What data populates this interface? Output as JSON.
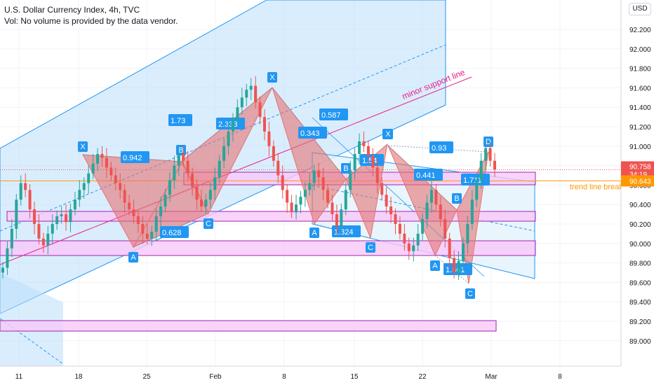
{
  "header": {
    "title": "U.S. Dollar Currency Index, 4h, TVC",
    "subtitle": "Vol: No volume is provided by the data vendor."
  },
  "currency_badge": "USD",
  "colors": {
    "up": "#26a69a",
    "down": "#ef5350",
    "grid": "#f0f3fa",
    "channel_fill": "#bbdefb",
    "channel_line": "#2196f3",
    "zone_fill": "#f8c8f8",
    "zone_line": "#9c27b0",
    "pattern_fill": "#e57373",
    "support_line": "#e91e8c",
    "trend_line": "#ff9800",
    "label_bg": "#2196f3"
  },
  "chart_data": {
    "type": "candlestick",
    "title": "U.S. Dollar Currency Index, 4h, TVC",
    "y_ticks": [
      "92.200",
      "92.000",
      "91.800",
      "91.600",
      "91.400",
      "91.200",
      "91.000",
      "90.800",
      "90.600",
      "90.400",
      "90.200",
      "90.000",
      "89.800",
      "89.600",
      "89.400",
      "89.200",
      "89.000"
    ],
    "x_ticks": [
      "11",
      "18",
      "25",
      "Feb",
      "8",
      "15",
      "22",
      "Mar",
      "8"
    ],
    "ylim": [
      88.85,
      92.35
    ],
    "grid": true,
    "current_price": {
      "value": "90.758",
      "countdown": "34:19"
    },
    "trend_price": {
      "value": "90.643",
      "label": "trend line break"
    },
    "annotation_texts": {
      "support": "minor support line"
    },
    "close_series": [
      89.75,
      89.95,
      90.15,
      90.45,
      90.62,
      90.55,
      90.35,
      90.2,
      90.05,
      89.98,
      90.1,
      90.2,
      90.28,
      90.3,
      90.22,
      90.35,
      90.45,
      90.55,
      90.62,
      90.72,
      90.82,
      90.92,
      90.88,
      90.78,
      90.7,
      90.62,
      90.55,
      90.42,
      90.35,
      90.28,
      90.2,
      90.1,
      90.05,
      90.12,
      90.28,
      90.38,
      90.5,
      90.65,
      90.8,
      90.92,
      90.85,
      90.72,
      90.58,
      90.45,
      90.38,
      90.45,
      90.55,
      90.68,
      90.85,
      91.0,
      91.15,
      91.28,
      91.4,
      91.5,
      91.58,
      91.62,
      91.45,
      91.3,
      91.15,
      91.0,
      90.85,
      90.7,
      90.55,
      90.42,
      90.32,
      90.4,
      90.48,
      90.55,
      90.62,
      90.75,
      90.68,
      90.55,
      90.42,
      90.3,
      90.18,
      90.35,
      90.55,
      90.75,
      90.92,
      91.05,
      91.0,
      90.9,
      90.78,
      90.62,
      90.5,
      90.38,
      90.3,
      90.2,
      90.1,
      90.0,
      89.92,
      89.98,
      90.1,
      90.25,
      90.42,
      90.55,
      90.4,
      90.25,
      90.05,
      89.85,
      89.7,
      89.82,
      90.0,
      90.2,
      90.45,
      90.65,
      90.85,
      90.98,
      90.85,
      90.76
    ],
    "patterns": [
      {
        "points": [
          [
            "X",
            "90.93"
          ],
          [
            "A",
            "90.02"
          ],
          [
            "B",
            "90.9"
          ],
          [
            "C",
            "90.35"
          ]
        ],
        "ratios": [
          "0.942",
          "0.628"
        ]
      },
      {
        "points": [
          [
            "B",
            "90.9"
          ],
          [
            "C",
            "90.35"
          ],
          [
            "D",
            "91.62"
          ]
        ],
        "ratios": [
          "1.73",
          "2.333"
        ]
      },
      {
        "points": [
          [
            "X",
            "91.62"
          ],
          [
            "A",
            "90.3"
          ],
          [
            "B",
            "90.76"
          ],
          [
            "C",
            "90.16"
          ],
          [
            "D",
            "91.05"
          ]
        ],
        "ratios": [
          "0.343",
          "0.587",
          "1.324",
          "1.54"
        ]
      },
      {
        "points": [
          [
            "X",
            "91.05"
          ],
          [
            "A",
            "89.93"
          ],
          [
            "B",
            "90.55"
          ],
          [
            "C",
            "89.67"
          ],
          [
            "D",
            "90.98"
          ]
        ],
        "ratios": [
          "0.441",
          "0.93",
          "1.711",
          "1.561"
        ]
      }
    ]
  }
}
